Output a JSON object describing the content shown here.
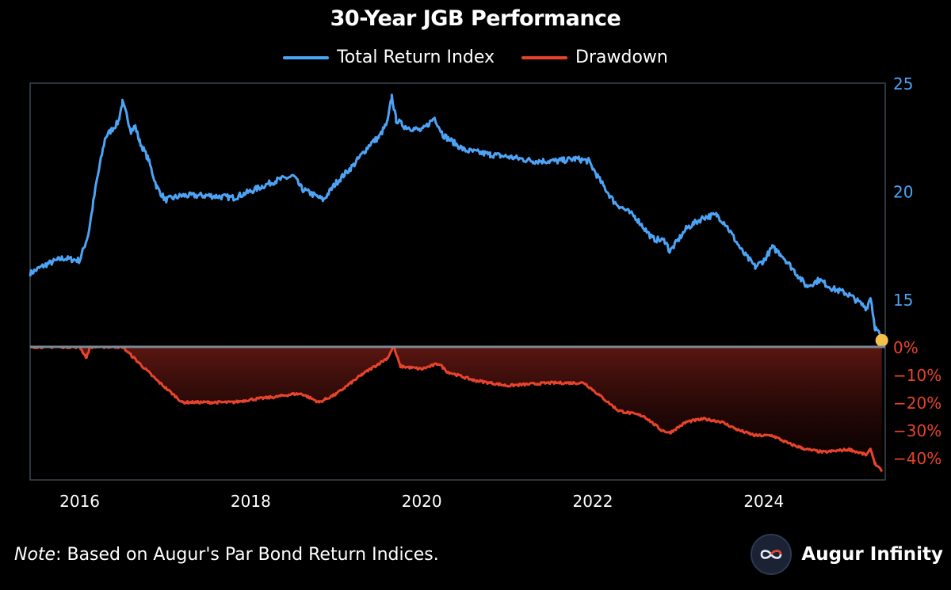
{
  "chart_data": {
    "type": "line",
    "title": "30-Year JGB Performance",
    "legend": {
      "placement": "top-center",
      "entries": [
        {
          "label": "Total Return Index",
          "color": "#4da3f5"
        },
        {
          "label": "Drawdown",
          "color": "#e8432c"
        }
      ]
    },
    "x_axis": {
      "range": [
        2015.42,
        2025.42
      ],
      "tick_values": [
        2016,
        2018,
        2020,
        2022,
        2024
      ],
      "tick_labels": [
        "2016",
        "2018",
        "2020",
        "2022",
        "2024"
      ]
    },
    "top_panel": {
      "y_axis_side": "right",
      "y_range": [
        12.8,
        25.0
      ],
      "tick_values": [
        15,
        20,
        25
      ],
      "tick_labels": [
        "15",
        "20",
        "25"
      ],
      "series": [
        {
          "name": "Total Return Index",
          "color": "#4da3f5",
          "x": [
            2015.42,
            2015.6,
            2015.8,
            2016.0,
            2016.1,
            2016.2,
            2016.3,
            2016.45,
            2016.5,
            2016.55,
            2016.6,
            2016.65,
            2016.7,
            2016.8,
            2016.9,
            2017.0,
            2017.2,
            2017.5,
            2017.8,
            2018.0,
            2018.3,
            2018.5,
            2018.6,
            2018.7,
            2018.85,
            2019.0,
            2019.2,
            2019.4,
            2019.5,
            2019.6,
            2019.65,
            2019.7,
            2019.8,
            2020.0,
            2020.15,
            2020.25,
            2020.5,
            2020.8,
            2021.0,
            2021.3,
            2021.6,
            2021.8,
            2021.95,
            2022.1,
            2022.25,
            2022.5,
            2022.7,
            2022.85,
            2022.9,
            2023.1,
            2023.3,
            2023.45,
            2023.55,
            2023.75,
            2023.9,
            2024.0,
            2024.1,
            2024.2,
            2024.4,
            2024.5,
            2024.65,
            2024.8,
            2024.95,
            2025.0,
            2025.2,
            2025.25,
            2025.3,
            2025.35,
            2025.38
          ],
          "y": [
            16.2,
            16.6,
            16.9,
            16.8,
            18.0,
            20.5,
            22.5,
            23.2,
            24.1,
            23.5,
            22.8,
            23.0,
            22.3,
            21.5,
            20.2,
            19.6,
            19.8,
            19.8,
            19.7,
            20.0,
            20.5,
            20.7,
            20.1,
            19.9,
            19.6,
            20.4,
            21.2,
            22.2,
            22.5,
            23.2,
            24.4,
            23.3,
            23.0,
            22.8,
            23.4,
            22.6,
            21.9,
            21.7,
            21.6,
            21.4,
            21.4,
            21.5,
            21.4,
            20.4,
            19.5,
            18.8,
            17.8,
            17.7,
            17.2,
            18.3,
            18.8,
            18.9,
            18.5,
            17.2,
            16.5,
            16.8,
            17.4,
            17.1,
            16.1,
            15.6,
            15.9,
            15.5,
            15.3,
            15.2,
            14.6,
            15.1,
            13.7,
            13.4,
            13.1
          ]
        }
      ],
      "end_marker": {
        "x": 2025.38,
        "y": 13.1,
        "color": "#f5c04a"
      }
    },
    "bottom_panel": {
      "y_axis_side": "right",
      "y_range": [
        -48,
        0
      ],
      "tick_values": [
        0,
        -10,
        -20,
        -30,
        -40
      ],
      "tick_labels": [
        "0%",
        "-10%",
        "-20%",
        "-30%",
        "-40%"
      ],
      "series": [
        {
          "name": "Drawdown",
          "color": "#e8432c",
          "x": [
            2015.42,
            2015.8,
            2016.0,
            2016.08,
            2016.12,
            2016.2,
            2016.5,
            2016.7,
            2016.9,
            2017.2,
            2017.5,
            2017.8,
            2018.0,
            2018.3,
            2018.5,
            2018.6,
            2018.8,
            2019.0,
            2019.3,
            2019.5,
            2019.6,
            2019.67,
            2019.75,
            2020.0,
            2020.2,
            2020.3,
            2020.6,
            2021.0,
            2021.5,
            2021.9,
            2022.1,
            2022.3,
            2022.6,
            2022.8,
            2022.9,
            2023.1,
            2023.3,
            2023.5,
            2023.7,
            2023.9,
            2024.1,
            2024.3,
            2024.5,
            2024.7,
            2025.0,
            2025.2,
            2025.25,
            2025.3,
            2025.38
          ],
          "y": [
            0,
            0,
            0,
            -4,
            0,
            0,
            0,
            -6,
            -12,
            -20,
            -20,
            -20,
            -19,
            -18,
            -17,
            -17,
            -20,
            -17,
            -10,
            -6,
            -4,
            0,
            -7,
            -8,
            -6,
            -9,
            -12,
            -14,
            -13,
            -13,
            -18,
            -23,
            -25,
            -30,
            -31,
            -27,
            -26,
            -27,
            -30,
            -32,
            -32,
            -35,
            -37,
            -38,
            -37,
            -39,
            -37,
            -42,
            -45
          ]
        }
      ]
    },
    "note_label": "Note",
    "note_text": ": Based on Augur's Par Bond Return Indices.",
    "brand": "Augur Infinity",
    "brand_icon": "infinity-icon"
  }
}
